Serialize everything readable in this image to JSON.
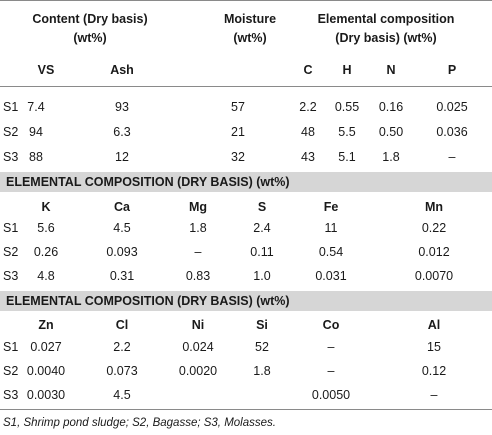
{
  "header": {
    "content": "Content (Dry basis)\n(wt%)",
    "moisture": "Moisture\n(wt%)",
    "elemental": "Elemental composition\n(Dry basis) (wt%)",
    "sub": [
      "VS",
      "Ash",
      "C",
      "H",
      "N",
      "P"
    ]
  },
  "table1": {
    "rows": [
      {
        "id": "S1",
        "vs": "7.4",
        "ash": "93",
        "moisture": "57",
        "c": "2.2",
        "h": "0.55",
        "n": "0.16",
        "p": "0.025"
      },
      {
        "id": "S2",
        "vs": "94",
        "ash": "6.3",
        "moisture": "21",
        "c": "48",
        "h": "5.5",
        "n": "0.50",
        "p": "0.036"
      },
      {
        "id": "S3",
        "vs": "88",
        "ash": "12",
        "moisture": "32",
        "c": "43",
        "h": "5.1",
        "n": "1.8",
        "p": "–"
      }
    ]
  },
  "table2": {
    "title": "ELEMENTAL COMPOSITION (DRY BASIS) (wt%)",
    "cols": [
      "K",
      "Ca",
      "Mg",
      "S",
      "Fe",
      "Mn"
    ],
    "rows": [
      {
        "id": "S1",
        "v": [
          "5.6",
          "4.5",
          "1.8",
          "2.4",
          "11",
          "0.22"
        ]
      },
      {
        "id": "S2",
        "v": [
          "0.26",
          "0.093",
          "–",
          "0.11",
          "0.54",
          "0.012"
        ]
      },
      {
        "id": "S3",
        "v": [
          "4.8",
          "0.31",
          "0.83",
          "1.0",
          "0.031",
          "0.0070"
        ]
      }
    ]
  },
  "table3": {
    "title": "ELEMENTAL COMPOSITION (DRY BASIS) (wt%)",
    "cols": [
      "Zn",
      "Cl",
      "Ni",
      "Si",
      "Co",
      "Al"
    ],
    "rows": [
      {
        "id": "S1",
        "v": [
          "0.027",
          "2.2",
          "0.024",
          "52",
          "–",
          "15"
        ]
      },
      {
        "id": "S2",
        "v": [
          "0.0040",
          "0.073",
          "0.0020",
          "1.8",
          "–",
          "0.12"
        ]
      },
      {
        "id": "S3",
        "v": [
          "0.0030",
          "4.5",
          "",
          "",
          "0.0050",
          "–"
        ]
      }
    ]
  },
  "footnote": "S1, Shrimp pond sludge; S2, Bagasse; S3, Molasses."
}
